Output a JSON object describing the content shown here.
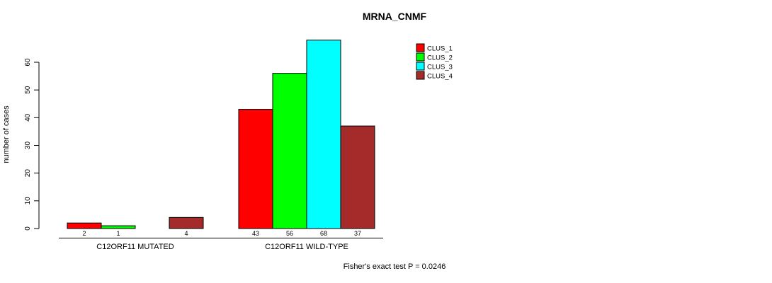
{
  "title": "MRNA_CNMF",
  "y_axis": {
    "label": "number of cases"
  },
  "footer": "Fisher's exact test P = 0.0246",
  "chart_data": {
    "type": "bar",
    "title": "MRNA_CNMF",
    "ylabel": "number of cases",
    "xlabel": "",
    "ylim": [
      0,
      68
    ],
    "yticks": [
      0,
      10,
      20,
      30,
      40,
      50,
      60
    ],
    "grid": false,
    "legend_position": "top-right",
    "series": [
      "CLUS_1",
      "CLUS_2",
      "CLUS_3",
      "CLUS_4"
    ],
    "series_colors": [
      "#FF0000",
      "#00FF00",
      "#00FFFF",
      "#A52A2A"
    ],
    "groups": [
      {
        "label": "C12ORF11 MUTATED",
        "values": [
          2,
          1,
          0,
          4
        ],
        "bar_labels": [
          "2",
          "1",
          "",
          "4"
        ]
      },
      {
        "label": "C12ORF11 WILD-TYPE",
        "values": [
          43,
          56,
          68,
          37
        ],
        "bar_labels": [
          "43",
          "56",
          "68",
          "37"
        ]
      }
    ],
    "annotation": "Fisher's exact test P = 0.0246"
  }
}
